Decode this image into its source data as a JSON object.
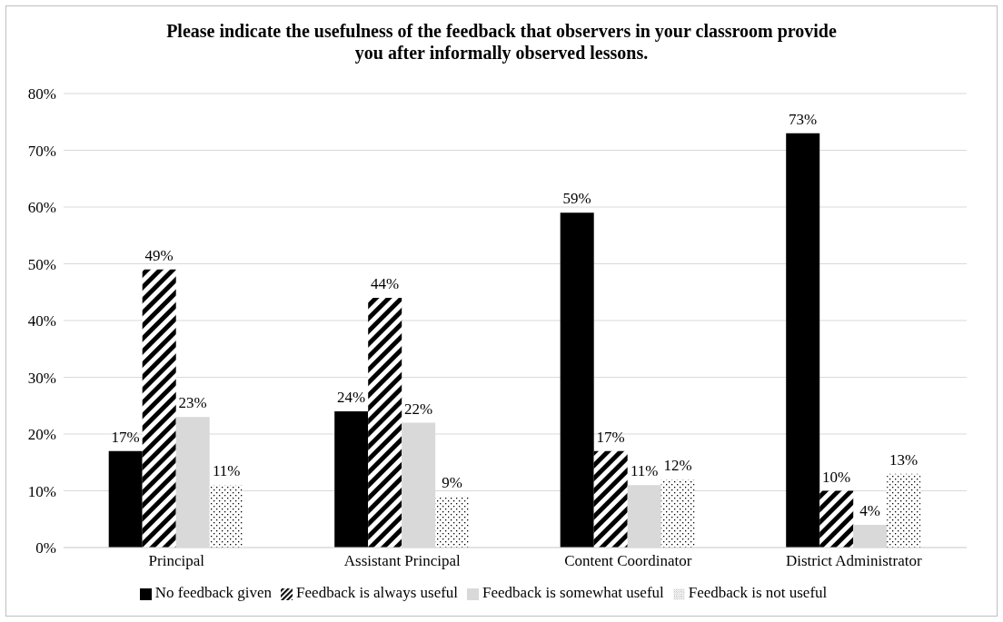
{
  "chart_data": {
    "type": "bar",
    "title": "Please indicate the usefulness of the feedback that observers in your classroom provide you after informally observed lessons.",
    "categories": [
      "Principal",
      "Assistant Principal",
      "Content Coordinator",
      "District Administrator"
    ],
    "series": [
      {
        "name": "No feedback given",
        "color": "#000000",
        "values": [
          17,
          24,
          59,
          73
        ],
        "value_labels": [
          "17%",
          "24%",
          "59%",
          "73%"
        ]
      },
      {
        "name": "Feedback is always useful",
        "color": "#000000",
        "values": [
          49,
          44,
          17,
          10
        ],
        "value_labels": [
          "49%",
          "44%",
          "17%",
          "10%"
        ]
      },
      {
        "name": "Feedback is somewhat useful",
        "color": "#d9d9d9",
        "values": [
          23,
          22,
          11,
          4
        ],
        "value_labels": [
          "23%",
          "22%",
          "11%",
          "4%"
        ]
      },
      {
        "name": "Feedback is not useful",
        "color": "#000000",
        "values": [
          11,
          9,
          12,
          13
        ],
        "value_labels": [
          "11%",
          "9%",
          "12%",
          "13%"
        ]
      }
    ],
    "ylim": [
      0,
      80
    ],
    "yticks": [
      {
        "value": 0,
        "label": "0%"
      },
      {
        "value": 10,
        "label": "10%"
      },
      {
        "value": 20,
        "label": "20%"
      },
      {
        "value": 30,
        "label": "30%"
      },
      {
        "value": 40,
        "label": "40%"
      },
      {
        "value": 50,
        "label": "50%"
      },
      {
        "value": 60,
        "label": "60%"
      },
      {
        "value": 70,
        "label": "70%"
      },
      {
        "value": 80,
        "label": "80%"
      }
    ],
    "grid": "y",
    "legend": "bottom"
  }
}
